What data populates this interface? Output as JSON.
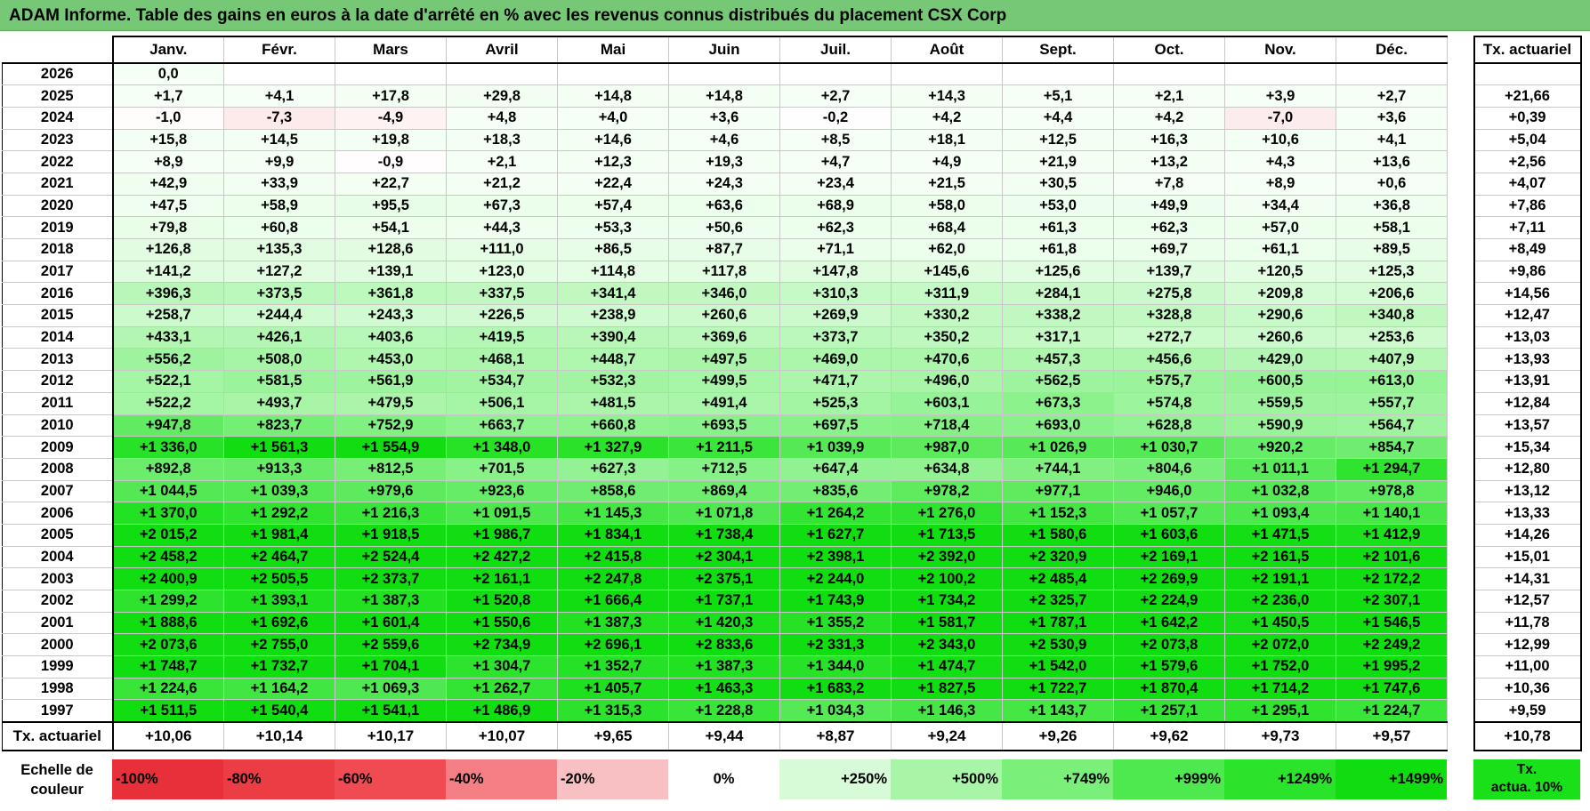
{
  "title": "ADAM Informe. Table des gains en euros à la date d'arrêté en % avec les revenus connus distribués du placement CSX Corp",
  "months": [
    "Janv.",
    "Févr.",
    "Mars",
    "Avril",
    "Mai",
    "Juin",
    "Juil.",
    "Août",
    "Sept.",
    "Oct.",
    "Nov.",
    "Déc."
  ],
  "tx_header": "Tx. actuariel",
  "rows": [
    {
      "year": "2026",
      "vals": [
        "0,0",
        "",
        "",
        "",
        "",
        "",
        "",
        "",
        "",
        "",
        "",
        ""
      ],
      "tx": ""
    },
    {
      "year": "2025",
      "vals": [
        "+1,7",
        "+4,1",
        "+17,8",
        "+29,8",
        "+14,8",
        "+14,8",
        "+2,7",
        "+14,3",
        "+5,1",
        "+2,1",
        "+3,9",
        "+2,7"
      ],
      "tx": "+21,66"
    },
    {
      "year": "2024",
      "vals": [
        "-1,0",
        "-7,3",
        "-4,9",
        "+4,8",
        "+4,0",
        "+3,6",
        "-0,2",
        "+4,2",
        "+4,4",
        "+4,2",
        "-7,0",
        "+3,6"
      ],
      "tx": "+0,39"
    },
    {
      "year": "2023",
      "vals": [
        "+15,8",
        "+14,5",
        "+19,8",
        "+18,3",
        "+14,6",
        "+4,6",
        "+8,5",
        "+18,1",
        "+12,5",
        "+16,3",
        "+10,6",
        "+4,1"
      ],
      "tx": "+5,04"
    },
    {
      "year": "2022",
      "vals": [
        "+8,9",
        "+9,9",
        "-0,9",
        "+2,1",
        "+12,3",
        "+19,3",
        "+4,7",
        "+4,9",
        "+21,9",
        "+13,2",
        "+4,3",
        "+13,6"
      ],
      "tx": "+2,56"
    },
    {
      "year": "2021",
      "vals": [
        "+42,9",
        "+33,9",
        "+22,7",
        "+21,2",
        "+22,4",
        "+24,3",
        "+23,4",
        "+21,5",
        "+30,5",
        "+7,8",
        "+8,9",
        "+0,6"
      ],
      "tx": "+4,07"
    },
    {
      "year": "2020",
      "vals": [
        "+47,5",
        "+58,9",
        "+95,5",
        "+67,3",
        "+57,4",
        "+63,6",
        "+68,9",
        "+58,0",
        "+53,0",
        "+49,9",
        "+34,4",
        "+36,8"
      ],
      "tx": "+7,86"
    },
    {
      "year": "2019",
      "vals": [
        "+79,8",
        "+60,8",
        "+54,1",
        "+44,3",
        "+53,3",
        "+50,6",
        "+62,3",
        "+68,4",
        "+61,3",
        "+62,3",
        "+57,0",
        "+58,1"
      ],
      "tx": "+7,11"
    },
    {
      "year": "2018",
      "vals": [
        "+126,8",
        "+135,3",
        "+128,6",
        "+111,0",
        "+86,5",
        "+87,7",
        "+71,1",
        "+62,0",
        "+61,8",
        "+69,7",
        "+61,1",
        "+89,5"
      ],
      "tx": "+8,49"
    },
    {
      "year": "2017",
      "vals": [
        "+141,2",
        "+127,2",
        "+139,1",
        "+123,0",
        "+114,8",
        "+117,8",
        "+147,8",
        "+145,6",
        "+125,6",
        "+139,7",
        "+120,5",
        "+125,3"
      ],
      "tx": "+9,86"
    },
    {
      "year": "2016",
      "vals": [
        "+396,3",
        "+373,5",
        "+361,8",
        "+337,5",
        "+341,4",
        "+346,0",
        "+310,3",
        "+311,9",
        "+284,1",
        "+275,8",
        "+209,8",
        "+206,6"
      ],
      "tx": "+14,56"
    },
    {
      "year": "2015",
      "vals": [
        "+258,7",
        "+244,4",
        "+243,3",
        "+226,5",
        "+238,9",
        "+260,6",
        "+269,9",
        "+330,2",
        "+338,2",
        "+328,8",
        "+290,6",
        "+340,8"
      ],
      "tx": "+12,47"
    },
    {
      "year": "2014",
      "vals": [
        "+433,1",
        "+426,1",
        "+403,6",
        "+419,5",
        "+390,4",
        "+369,6",
        "+373,7",
        "+350,2",
        "+317,1",
        "+272,7",
        "+260,6",
        "+253,6"
      ],
      "tx": "+13,03"
    },
    {
      "year": "2013",
      "vals": [
        "+556,2",
        "+508,0",
        "+453,0",
        "+468,1",
        "+448,7",
        "+497,5",
        "+469,0",
        "+470,6",
        "+457,3",
        "+456,6",
        "+429,0",
        "+407,9"
      ],
      "tx": "+13,93"
    },
    {
      "year": "2012",
      "vals": [
        "+522,1",
        "+581,5",
        "+561,9",
        "+534,7",
        "+532,3",
        "+499,5",
        "+471,7",
        "+496,0",
        "+562,5",
        "+575,7",
        "+600,5",
        "+613,0"
      ],
      "tx": "+13,91"
    },
    {
      "year": "2011",
      "vals": [
        "+522,2",
        "+493,7",
        "+479,5",
        "+506,1",
        "+481,5",
        "+491,4",
        "+525,3",
        "+603,1",
        "+673,3",
        "+574,8",
        "+559,5",
        "+557,7"
      ],
      "tx": "+12,84"
    },
    {
      "year": "2010",
      "vals": [
        "+947,8",
        "+823,7",
        "+752,9",
        "+663,7",
        "+660,8",
        "+693,5",
        "+697,5",
        "+718,4",
        "+693,0",
        "+628,8",
        "+590,9",
        "+564,7"
      ],
      "tx": "+13,57"
    },
    {
      "year": "2009",
      "vals": [
        "+1 336,0",
        "+1 561,3",
        "+1 554,9",
        "+1 348,0",
        "+1 327,9",
        "+1 211,5",
        "+1 039,9",
        "+987,0",
        "+1 026,9",
        "+1 030,7",
        "+920,2",
        "+854,7"
      ],
      "tx": "+15,34"
    },
    {
      "year": "2008",
      "vals": [
        "+892,8",
        "+913,3",
        "+812,5",
        "+701,5",
        "+627,3",
        "+712,5",
        "+647,4",
        "+634,8",
        "+744,1",
        "+804,6",
        "+1 011,1",
        "+1 294,7"
      ],
      "tx": "+12,80"
    },
    {
      "year": "2007",
      "vals": [
        "+1 044,5",
        "+1 039,3",
        "+979,6",
        "+923,6",
        "+858,6",
        "+869,4",
        "+835,6",
        "+978,2",
        "+977,1",
        "+946,0",
        "+1 032,8",
        "+978,8"
      ],
      "tx": "+13,12"
    },
    {
      "year": "2006",
      "vals": [
        "+1 370,0",
        "+1 292,2",
        "+1 216,3",
        "+1 091,5",
        "+1 145,3",
        "+1 071,8",
        "+1 264,2",
        "+1 276,0",
        "+1 152,3",
        "+1 057,7",
        "+1 093,4",
        "+1 140,1"
      ],
      "tx": "+13,33"
    },
    {
      "year": "2005",
      "vals": [
        "+2 015,2",
        "+1 981,4",
        "+1 918,5",
        "+1 986,7",
        "+1 834,1",
        "+1 738,4",
        "+1 627,7",
        "+1 713,5",
        "+1 580,6",
        "+1 603,6",
        "+1 471,5",
        "+1 412,9"
      ],
      "tx": "+14,26"
    },
    {
      "year": "2004",
      "vals": [
        "+2 458,2",
        "+2 464,7",
        "+2 524,4",
        "+2 427,2",
        "+2 415,8",
        "+2 304,1",
        "+2 398,1",
        "+2 392,0",
        "+2 320,9",
        "+2 169,1",
        "+2 161,5",
        "+2 101,6"
      ],
      "tx": "+15,01"
    },
    {
      "year": "2003",
      "vals": [
        "+2 400,9",
        "+2 505,5",
        "+2 373,7",
        "+2 161,1",
        "+2 247,8",
        "+2 375,1",
        "+2 244,0",
        "+2 100,2",
        "+2 485,4",
        "+2 269,9",
        "+2 191,1",
        "+2 172,2"
      ],
      "tx": "+14,31"
    },
    {
      "year": "2002",
      "vals": [
        "+1 299,2",
        "+1 393,1",
        "+1 387,3",
        "+1 520,8",
        "+1 666,4",
        "+1 737,1",
        "+1 743,9",
        "+1 734,2",
        "+2 325,7",
        "+2 224,9",
        "+2 236,0",
        "+2 307,1"
      ],
      "tx": "+12,57"
    },
    {
      "year": "2001",
      "vals": [
        "+1 888,6",
        "+1 692,6",
        "+1 601,4",
        "+1 550,6",
        "+1 387,3",
        "+1 420,3",
        "+1 355,2",
        "+1 581,7",
        "+1 787,1",
        "+1 642,2",
        "+1 450,5",
        "+1 546,5"
      ],
      "tx": "+11,78"
    },
    {
      "year": "2000",
      "vals": [
        "+2 073,6",
        "+2 755,0",
        "+2 559,6",
        "+2 734,9",
        "+2 696,1",
        "+2 833,6",
        "+2 331,3",
        "+2 343,0",
        "+2 530,9",
        "+2 073,8",
        "+2 072,0",
        "+2 249,2"
      ],
      "tx": "+12,99"
    },
    {
      "year": "1999",
      "vals": [
        "+1 748,7",
        "+1 732,7",
        "+1 704,1",
        "+1 304,7",
        "+1 352,7",
        "+1 387,3",
        "+1 344,0",
        "+1 474,7",
        "+1 542,0",
        "+1 579,6",
        "+1 752,0",
        "+1 995,2"
      ],
      "tx": "+11,00"
    },
    {
      "year": "1998",
      "vals": [
        "+1 224,6",
        "+1 164,2",
        "+1 069,3",
        "+1 262,7",
        "+1 405,7",
        "+1 463,3",
        "+1 683,2",
        "+1 827,5",
        "+1 722,7",
        "+1 870,4",
        "+1 714,2",
        "+1 747,6"
      ],
      "tx": "+10,36"
    },
    {
      "year": "1997",
      "vals": [
        "+1 511,5",
        "+1 540,4",
        "+1 541,1",
        "+1 486,9",
        "+1 315,3",
        "+1 228,8",
        "+1 034,3",
        "+1 146,3",
        "+1 143,7",
        "+1 257,1",
        "+1 295,1",
        "+1 224,7"
      ],
      "tx": "+9,59"
    }
  ],
  "footer": {
    "label": "Tx. actuariel",
    "vals": [
      "+10,06",
      "+10,14",
      "+10,17",
      "+10,07",
      "+9,65",
      "+9,44",
      "+8,87",
      "+9,24",
      "+9,26",
      "+9,62",
      "+9,73",
      "+9,57"
    ],
    "tx": "+10,78"
  },
  "legend": {
    "label_line1": "Echelle de",
    "label_line2": "couleur",
    "swatches": [
      {
        "text": "-100%",
        "color": "#e8303a",
        "kind": "neg"
      },
      {
        "text": "-80%",
        "color": "#ec3c44",
        "kind": "neg"
      },
      {
        "text": "-60%",
        "color": "#f04a52",
        "kind": "neg"
      },
      {
        "text": "-40%",
        "color": "#f47f84",
        "kind": "neg"
      },
      {
        "text": "-20%",
        "color": "#f9c0c3",
        "kind": "neg"
      },
      {
        "text": "0%",
        "color": "#ffffff",
        "kind": "zero"
      },
      {
        "text": "+250%",
        "color": "#d6fbd6",
        "kind": "pos"
      },
      {
        "text": "+500%",
        "color": "#a8f5a8",
        "kind": "pos"
      },
      {
        "text": "+749%",
        "color": "#7aef7a",
        "kind": "pos"
      },
      {
        "text": "+999%",
        "color": "#4ee94e",
        "kind": "pos"
      },
      {
        "text": "+1249%",
        "color": "#2ae32a",
        "kind": "pos"
      },
      {
        "text": "+1499%",
        "color": "#0fdd0f",
        "kind": "pos"
      }
    ],
    "tx_line1": "Tx.",
    "tx_line2": "actua. 10%",
    "tx_color": "#19e019"
  }
}
